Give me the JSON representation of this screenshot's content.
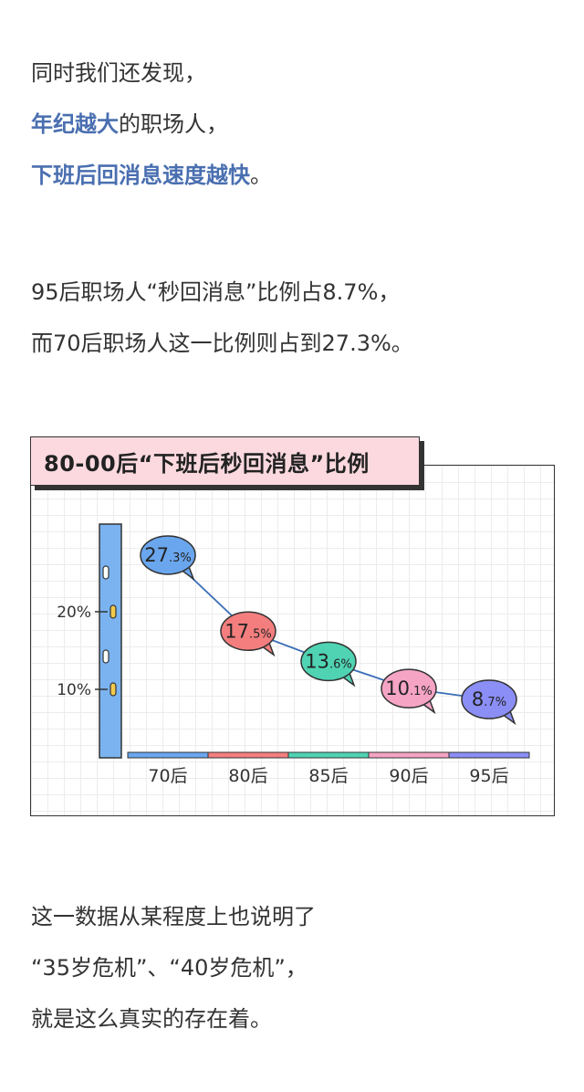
{
  "intro": {
    "line1": "同时我们还发现，",
    "line2_highlight": "年纪越大",
    "line2_rest": "的职场人，",
    "line3_highlight": "下班后回消息速度越快",
    "line3_rest": "。"
  },
  "stats": {
    "line1": "95后职场人“秒回消息”比例占8.7%，",
    "line2": "而70后职场人这一比例则占到27.3%。"
  },
  "conclusion": {
    "line1": "这一数据从某程度上也说明了",
    "line2": "“35岁危机”、“40岁危机”，",
    "line3": "就是这么真实的存在着。"
  },
  "colors": {
    "highlight": "#4a6fb0",
    "axis": "#7ab3f0",
    "line": "#3b6fb6"
  },
  "chart_data": {
    "type": "line",
    "title": "80-00后“下班后秒回消息”比例",
    "categories": [
      "70后",
      "80后",
      "85后",
      "90后",
      "95后"
    ],
    "values": [
      27.3,
      17.5,
      13.6,
      10.1,
      8.7
    ],
    "labels": [
      {
        "main": "27",
        "suffix": ".3%"
      },
      {
        "main": "17",
        "suffix": ".5%"
      },
      {
        "main": "13",
        "suffix": ".6%"
      },
      {
        "main": "10",
        "suffix": ".1%"
      },
      {
        "main": "8",
        "suffix": ".7%"
      }
    ],
    "bubble_colors": [
      "#6aa6ee",
      "#f47e7e",
      "#4fd3b3",
      "#f5a4c4",
      "#8a8ef5"
    ],
    "y_ticks": [
      {
        "value": 10,
        "label": "10%"
      },
      {
        "value": 20,
        "label": "20%"
      }
    ],
    "xlabel": "",
    "ylabel": "",
    "grid": true
  }
}
